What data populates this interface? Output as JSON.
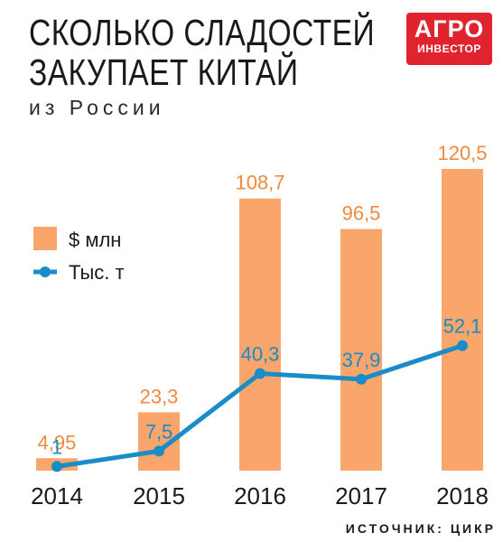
{
  "title": {
    "line1": "СКОЛЬКО СЛАДОСТЕЙ",
    "line2": "ЗАКУПАЕТ КИТАЙ"
  },
  "subtitle": "из России",
  "logo": {
    "line1": "АГРО",
    "line2": "ИНВЕСТОР"
  },
  "source": "ИСТОЧНИК: ЦИКР",
  "colors": {
    "bar": "#f9a56b",
    "bar_label": "#f08a3e",
    "line": "#1a8cc7",
    "logo": "#e0232e"
  },
  "chart_data": {
    "type": "bar",
    "categories": [
      "2014",
      "2015",
      "2016",
      "2017",
      "2018"
    ],
    "series": [
      {
        "name": "$ млн",
        "type": "bar",
        "values": [
          4.95,
          23.3,
          108.7,
          96.5,
          120.5
        ],
        "labels": [
          "4,95",
          "23,3",
          "108,7",
          "96,5",
          "120,5"
        ]
      },
      {
        "name": "Тыс. т",
        "type": "line",
        "values": [
          1,
          7.5,
          40.3,
          37.9,
          52.1
        ],
        "labels": [
          "1",
          "7,5",
          "40,3",
          "37,9",
          "52,1"
        ]
      }
    ],
    "title": "СКОЛЬКО СЛАДОСТЕЙ ЗАКУПАЕТ КИТАЙ",
    "subtitle": "из России",
    "grid": false,
    "legend": "left"
  }
}
